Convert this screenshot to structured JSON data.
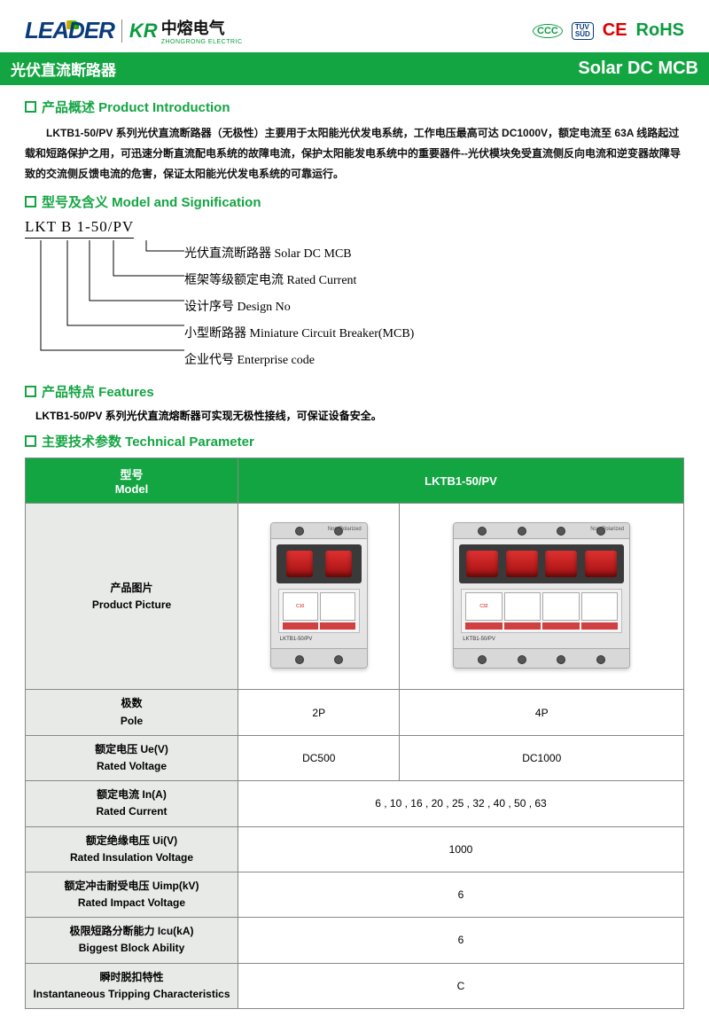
{
  "header": {
    "leader": "LEADER",
    "kr_mark": "KR",
    "kr_cn": "中熔电气",
    "kr_en": "ZHONGRONG ELECTRIC",
    "certs": {
      "ccc": "CCC",
      "tuv": "TUV\nSUD",
      "ce": "CE",
      "rohs": "RoHS"
    }
  },
  "title": {
    "cn": "光伏直流断路器",
    "en": "Solar DC MCB"
  },
  "intro": {
    "head": "产品概述  Product Introduction",
    "text": "LKTB1-50/PV 系列光伏直流断路器（无极性）主要用于太阳能光伏发电系统，工作电压最高可达 DC1000V，额定电流至 63A 线路起过载和短路保护之用，可迅速分断直流配电系统的故障电流，保护太阳能发电系统中的重要器件--光伏模块免受直流侧反向电流和逆变器故障导致的交流侧反馈电流的危害，保证太阳能光伏发电系统的可靠运行。"
  },
  "model": {
    "head": "型号及含义  Model and Signification",
    "code": "LKT B 1-50/PV",
    "labels": [
      "光伏直流断路器 Solar DC MCB",
      "框架等级额定电流 Rated Current",
      "设计序号 Design No",
      "小型断路器 Miniature Circuit Breaker(MCB)",
      "企业代号 Enterprise code"
    ]
  },
  "features": {
    "head": "产品特点  Features",
    "text": "LKTB1-50/PV 系列光伏直流熔断器可实现无极性接线，可保证设备安全。"
  },
  "params": {
    "head": "主要技术参数  Technical Parameter",
    "th_model_cn": "型号",
    "th_model_en": "Model",
    "th_val": "LKTB1-50/PV",
    "pic_cn": "产品图片",
    "pic_en": "Product Picture",
    "rows": [
      {
        "label_cn": "极数",
        "label_en": "Pole",
        "v1": "2P",
        "v2": "4P",
        "span": false
      },
      {
        "label_cn": "额定电压 Ue(V)",
        "label_en": "Rated Voltage",
        "v1": "DC500",
        "v2": "DC1000",
        "span": false
      },
      {
        "label_cn": "额定电流 In(A)",
        "label_en": "Rated Current",
        "v1": "6 , 10 , 16 , 20 , 25 , 32 , 40 , 50 , 63",
        "span": true
      },
      {
        "label_cn": "额定绝缘电压 Ui(V)",
        "label_en": "Rated Insulation Voltage",
        "v1": "1000",
        "span": true
      },
      {
        "label_cn": "额定冲击耐受电压 Uimp(kV)",
        "label_en": "Rated Impact Voltage",
        "v1": "6",
        "span": true
      },
      {
        "label_cn": "极限短路分断能力 Icu(kA)",
        "label_en": "Biggest Block Ability",
        "v1": "6",
        "span": true
      },
      {
        "label_cn": "瞬时脱扣特性",
        "label_en": "Instantaneous Tripping Characteristics",
        "v1": "C",
        "span": true
      }
    ]
  },
  "colors": {
    "brand": "#14a543",
    "blue": "#0a3b7a"
  }
}
